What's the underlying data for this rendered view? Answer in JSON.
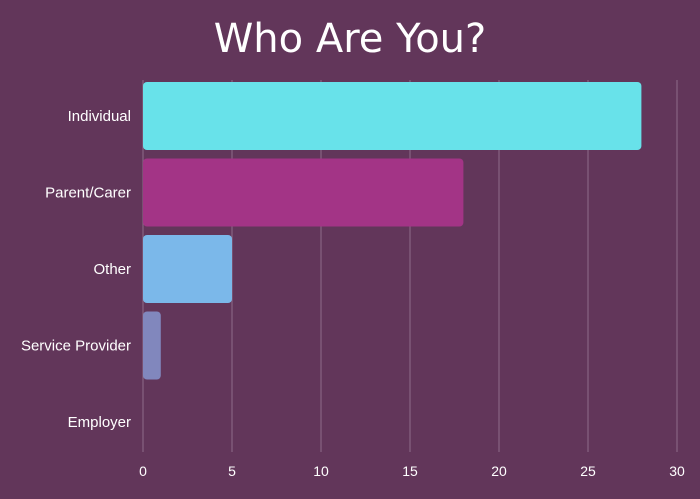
{
  "chart_data": {
    "type": "bar",
    "orientation": "horizontal",
    "title": "Who Are You?",
    "categories": [
      "Individual",
      "Parent/Carer",
      "Other",
      "Service Provider",
      "Employer"
    ],
    "values": [
      28,
      18,
      5,
      1,
      0
    ],
    "bar_colors": [
      "#68e2ea",
      "#a33486",
      "#7bb8ea",
      "#8187bd",
      "#8187bd"
    ],
    "xlim": [
      0,
      30
    ],
    "xticks": [
      "0",
      "5",
      "10",
      "15",
      "20",
      "25",
      "30"
    ],
    "grid": "vertical",
    "legend": "none"
  }
}
